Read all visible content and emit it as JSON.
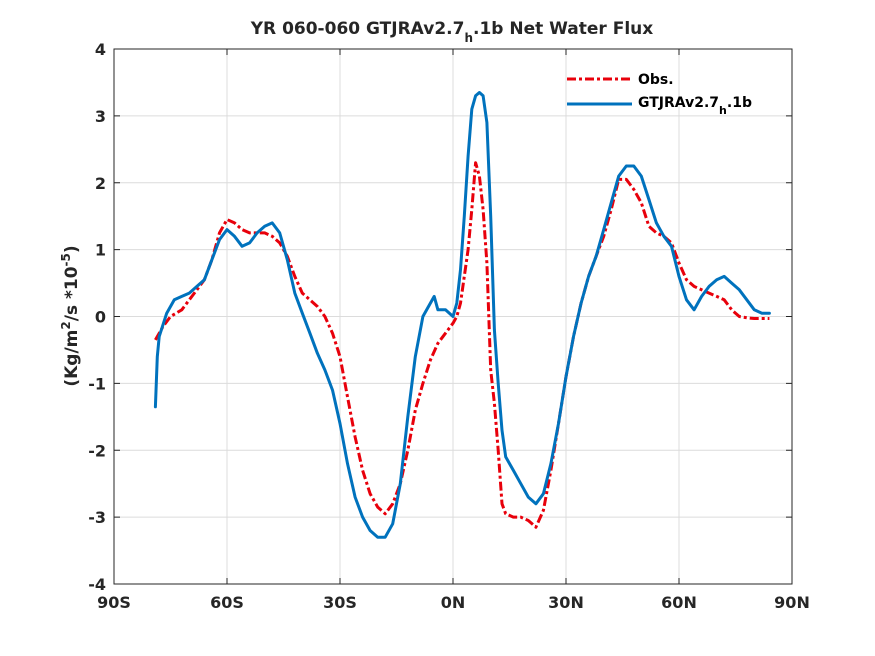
{
  "chart_data": {
    "type": "line",
    "title": {
      "main": "YR 060-060 GTJRAv2.7",
      "sub": "h",
      "rest": ".1b  Net Water Flux"
    },
    "ylabel": {
      "a": "(Kg/m",
      "b": "2",
      "c": "/s *10",
      "d": "-5",
      "e": ")"
    },
    "xlabel": "",
    "xlim": [
      -90,
      90
    ],
    "ylim": [
      -4,
      4
    ],
    "x_ticks": [
      -90,
      -60,
      -30,
      0,
      30,
      60,
      90
    ],
    "x_tick_labels": [
      "90S",
      "60S",
      "30S",
      "0N",
      "30N",
      "60N",
      "90N"
    ],
    "y_ticks": [
      -4,
      -3,
      -2,
      -1,
      0,
      1,
      2,
      3,
      4
    ],
    "y_tick_labels": [
      "-4",
      "-3",
      "-2",
      "-1",
      "0",
      "1",
      "2",
      "3",
      "4"
    ],
    "grid": true,
    "legend_position": "top-right",
    "series": [
      {
        "name": {
          "main": "Obs.",
          "sub": "",
          "rest": ""
        },
        "color": "#e8000b",
        "style": "dashdot",
        "points": [
          [
            -79,
            -0.35
          ],
          [
            -77,
            -0.15
          ],
          [
            -75,
            0.0
          ],
          [
            -72,
            0.1
          ],
          [
            -70,
            0.25
          ],
          [
            -68,
            0.4
          ],
          [
            -66,
            0.55
          ],
          [
            -64,
            0.85
          ],
          [
            -62,
            1.25
          ],
          [
            -60,
            1.45
          ],
          [
            -58,
            1.4
          ],
          [
            -56,
            1.3
          ],
          [
            -54,
            1.25
          ],
          [
            -50,
            1.25
          ],
          [
            -48,
            1.2
          ],
          [
            -46,
            1.1
          ],
          [
            -44,
            0.9
          ],
          [
            -42,
            0.6
          ],
          [
            -40,
            0.35
          ],
          [
            -38,
            0.25
          ],
          [
            -36,
            0.15
          ],
          [
            -34,
            0.0
          ],
          [
            -32,
            -0.25
          ],
          [
            -30,
            -0.6
          ],
          [
            -28,
            -1.2
          ],
          [
            -26,
            -1.8
          ],
          [
            -24,
            -2.3
          ],
          [
            -22,
            -2.65
          ],
          [
            -20,
            -2.85
          ],
          [
            -18,
            -2.95
          ],
          [
            -16,
            -2.8
          ],
          [
            -14,
            -2.5
          ],
          [
            -12,
            -2.0
          ],
          [
            -10,
            -1.4
          ],
          [
            -8,
            -1.0
          ],
          [
            -6,
            -0.65
          ],
          [
            -4,
            -0.4
          ],
          [
            -2,
            -0.25
          ],
          [
            0,
            -0.1
          ],
          [
            1,
            0.0
          ],
          [
            2,
            0.2
          ],
          [
            3,
            0.6
          ],
          [
            4,
            1.0
          ],
          [
            5,
            1.6
          ],
          [
            6,
            2.3
          ],
          [
            7,
            2.1
          ],
          [
            8,
            1.6
          ],
          [
            9,
            0.8
          ],
          [
            10,
            -0.8
          ],
          [
            11,
            -1.3
          ],
          [
            12,
            -2.0
          ],
          [
            13,
            -2.8
          ],
          [
            14,
            -2.95
          ],
          [
            16,
            -3.0
          ],
          [
            18,
            -3.0
          ],
          [
            20,
            -3.05
          ],
          [
            22,
            -3.15
          ],
          [
            24,
            -2.9
          ],
          [
            26,
            -2.3
          ],
          [
            28,
            -1.6
          ],
          [
            30,
            -0.9
          ],
          [
            32,
            -0.3
          ],
          [
            34,
            0.2
          ],
          [
            36,
            0.6
          ],
          [
            38,
            0.9
          ],
          [
            40,
            1.2
          ],
          [
            42,
            1.6
          ],
          [
            44,
            2.05
          ],
          [
            46,
            2.05
          ],
          [
            48,
            1.9
          ],
          [
            50,
            1.7
          ],
          [
            52,
            1.35
          ],
          [
            54,
            1.25
          ],
          [
            56,
            1.2
          ],
          [
            58,
            1.1
          ],
          [
            60,
            0.8
          ],
          [
            62,
            0.55
          ],
          [
            64,
            0.45
          ],
          [
            66,
            0.4
          ],
          [
            68,
            0.35
          ],
          [
            70,
            0.3
          ],
          [
            72,
            0.25
          ],
          [
            74,
            0.1
          ],
          [
            76,
            0.0
          ],
          [
            78,
            -0.02
          ],
          [
            80,
            -0.03
          ],
          [
            82,
            -0.03
          ],
          [
            84,
            -0.03
          ]
        ]
      },
      {
        "name": {
          "main": "GTJRAv2.7",
          "sub": "h",
          "rest": ".1b"
        },
        "color": "#0072bd",
        "style": "solid",
        "points": [
          [
            -79,
            -1.35
          ],
          [
            -78.5,
            -0.6
          ],
          [
            -78,
            -0.3
          ],
          [
            -76,
            0.05
          ],
          [
            -74,
            0.25
          ],
          [
            -72,
            0.3
          ],
          [
            -70,
            0.35
          ],
          [
            -68,
            0.45
          ],
          [
            -66,
            0.55
          ],
          [
            -64,
            0.85
          ],
          [
            -62,
            1.15
          ],
          [
            -60,
            1.3
          ],
          [
            -58,
            1.2
          ],
          [
            -56,
            1.05
          ],
          [
            -54,
            1.1
          ],
          [
            -52,
            1.25
          ],
          [
            -50,
            1.35
          ],
          [
            -48,
            1.4
          ],
          [
            -46,
            1.25
          ],
          [
            -44,
            0.85
          ],
          [
            -42,
            0.35
          ],
          [
            -40,
            0.05
          ],
          [
            -38,
            -0.25
          ],
          [
            -36,
            -0.55
          ],
          [
            -34,
            -0.8
          ],
          [
            -32,
            -1.1
          ],
          [
            -30,
            -1.6
          ],
          [
            -28,
            -2.2
          ],
          [
            -26,
            -2.7
          ],
          [
            -24,
            -3.0
          ],
          [
            -22,
            -3.2
          ],
          [
            -20,
            -3.3
          ],
          [
            -18,
            -3.3
          ],
          [
            -16,
            -3.1
          ],
          [
            -14,
            -2.5
          ],
          [
            -12,
            -1.5
          ],
          [
            -10,
            -0.6
          ],
          [
            -8,
            0.0
          ],
          [
            -6,
            0.2
          ],
          [
            -5,
            0.3
          ],
          [
            -4,
            0.1
          ],
          [
            -2,
            0.1
          ],
          [
            0,
            0.0
          ],
          [
            1,
            0.2
          ],
          [
            2,
            0.7
          ],
          [
            3,
            1.5
          ],
          [
            4,
            2.4
          ],
          [
            5,
            3.1
          ],
          [
            6,
            3.3
          ],
          [
            7,
            3.35
          ],
          [
            8,
            3.3
          ],
          [
            9,
            2.9
          ],
          [
            10,
            1.5
          ],
          [
            11,
            -0.2
          ],
          [
            12,
            -1.0
          ],
          [
            13,
            -1.7
          ],
          [
            14,
            -2.1
          ],
          [
            16,
            -2.3
          ],
          [
            18,
            -2.5
          ],
          [
            20,
            -2.7
          ],
          [
            22,
            -2.8
          ],
          [
            24,
            -2.65
          ],
          [
            26,
            -2.2
          ],
          [
            28,
            -1.6
          ],
          [
            30,
            -0.9
          ],
          [
            32,
            -0.3
          ],
          [
            34,
            0.2
          ],
          [
            36,
            0.6
          ],
          [
            38,
            0.9
          ],
          [
            40,
            1.3
          ],
          [
            42,
            1.7
          ],
          [
            44,
            2.1
          ],
          [
            46,
            2.25
          ],
          [
            48,
            2.25
          ],
          [
            50,
            2.1
          ],
          [
            52,
            1.75
          ],
          [
            54,
            1.4
          ],
          [
            56,
            1.2
          ],
          [
            58,
            1.05
          ],
          [
            60,
            0.6
          ],
          [
            62,
            0.25
          ],
          [
            64,
            0.1
          ],
          [
            66,
            0.3
          ],
          [
            68,
            0.45
          ],
          [
            70,
            0.55
          ],
          [
            72,
            0.6
          ],
          [
            74,
            0.5
          ],
          [
            76,
            0.4
          ],
          [
            78,
            0.25
          ],
          [
            80,
            0.1
          ],
          [
            82,
            0.05
          ],
          [
            84,
            0.05
          ]
        ]
      }
    ]
  }
}
